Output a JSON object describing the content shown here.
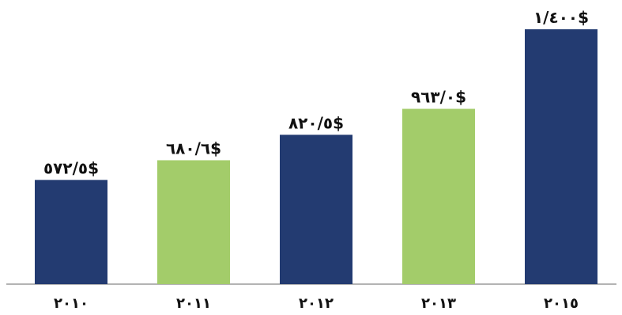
{
  "chart_data": {
    "type": "bar",
    "categories": [
      "٢٠١٠",
      "٢٠١١",
      "٢٠١٢",
      "٢٠١٣",
      "٢٠١٥"
    ],
    "values": [
      572.5,
      680.6,
      820.5,
      963.0,
      1400
    ],
    "data_labels": [
      "٥٧٢/٥$",
      "٦٨٠/٦$",
      "٨٢٠/٥$",
      "٩٦٣/٠$",
      "١/٤٠٠$"
    ],
    "bar_colors": [
      "#233b71",
      "#a3cc6a",
      "#233b71",
      "#a3cc6a",
      "#233b71"
    ],
    "title": "",
    "xlabel": "",
    "ylabel": "",
    "ylim": [
      0,
      1400
    ],
    "grid": false,
    "legend": "none",
    "axis_color": "#9a9a9a"
  }
}
